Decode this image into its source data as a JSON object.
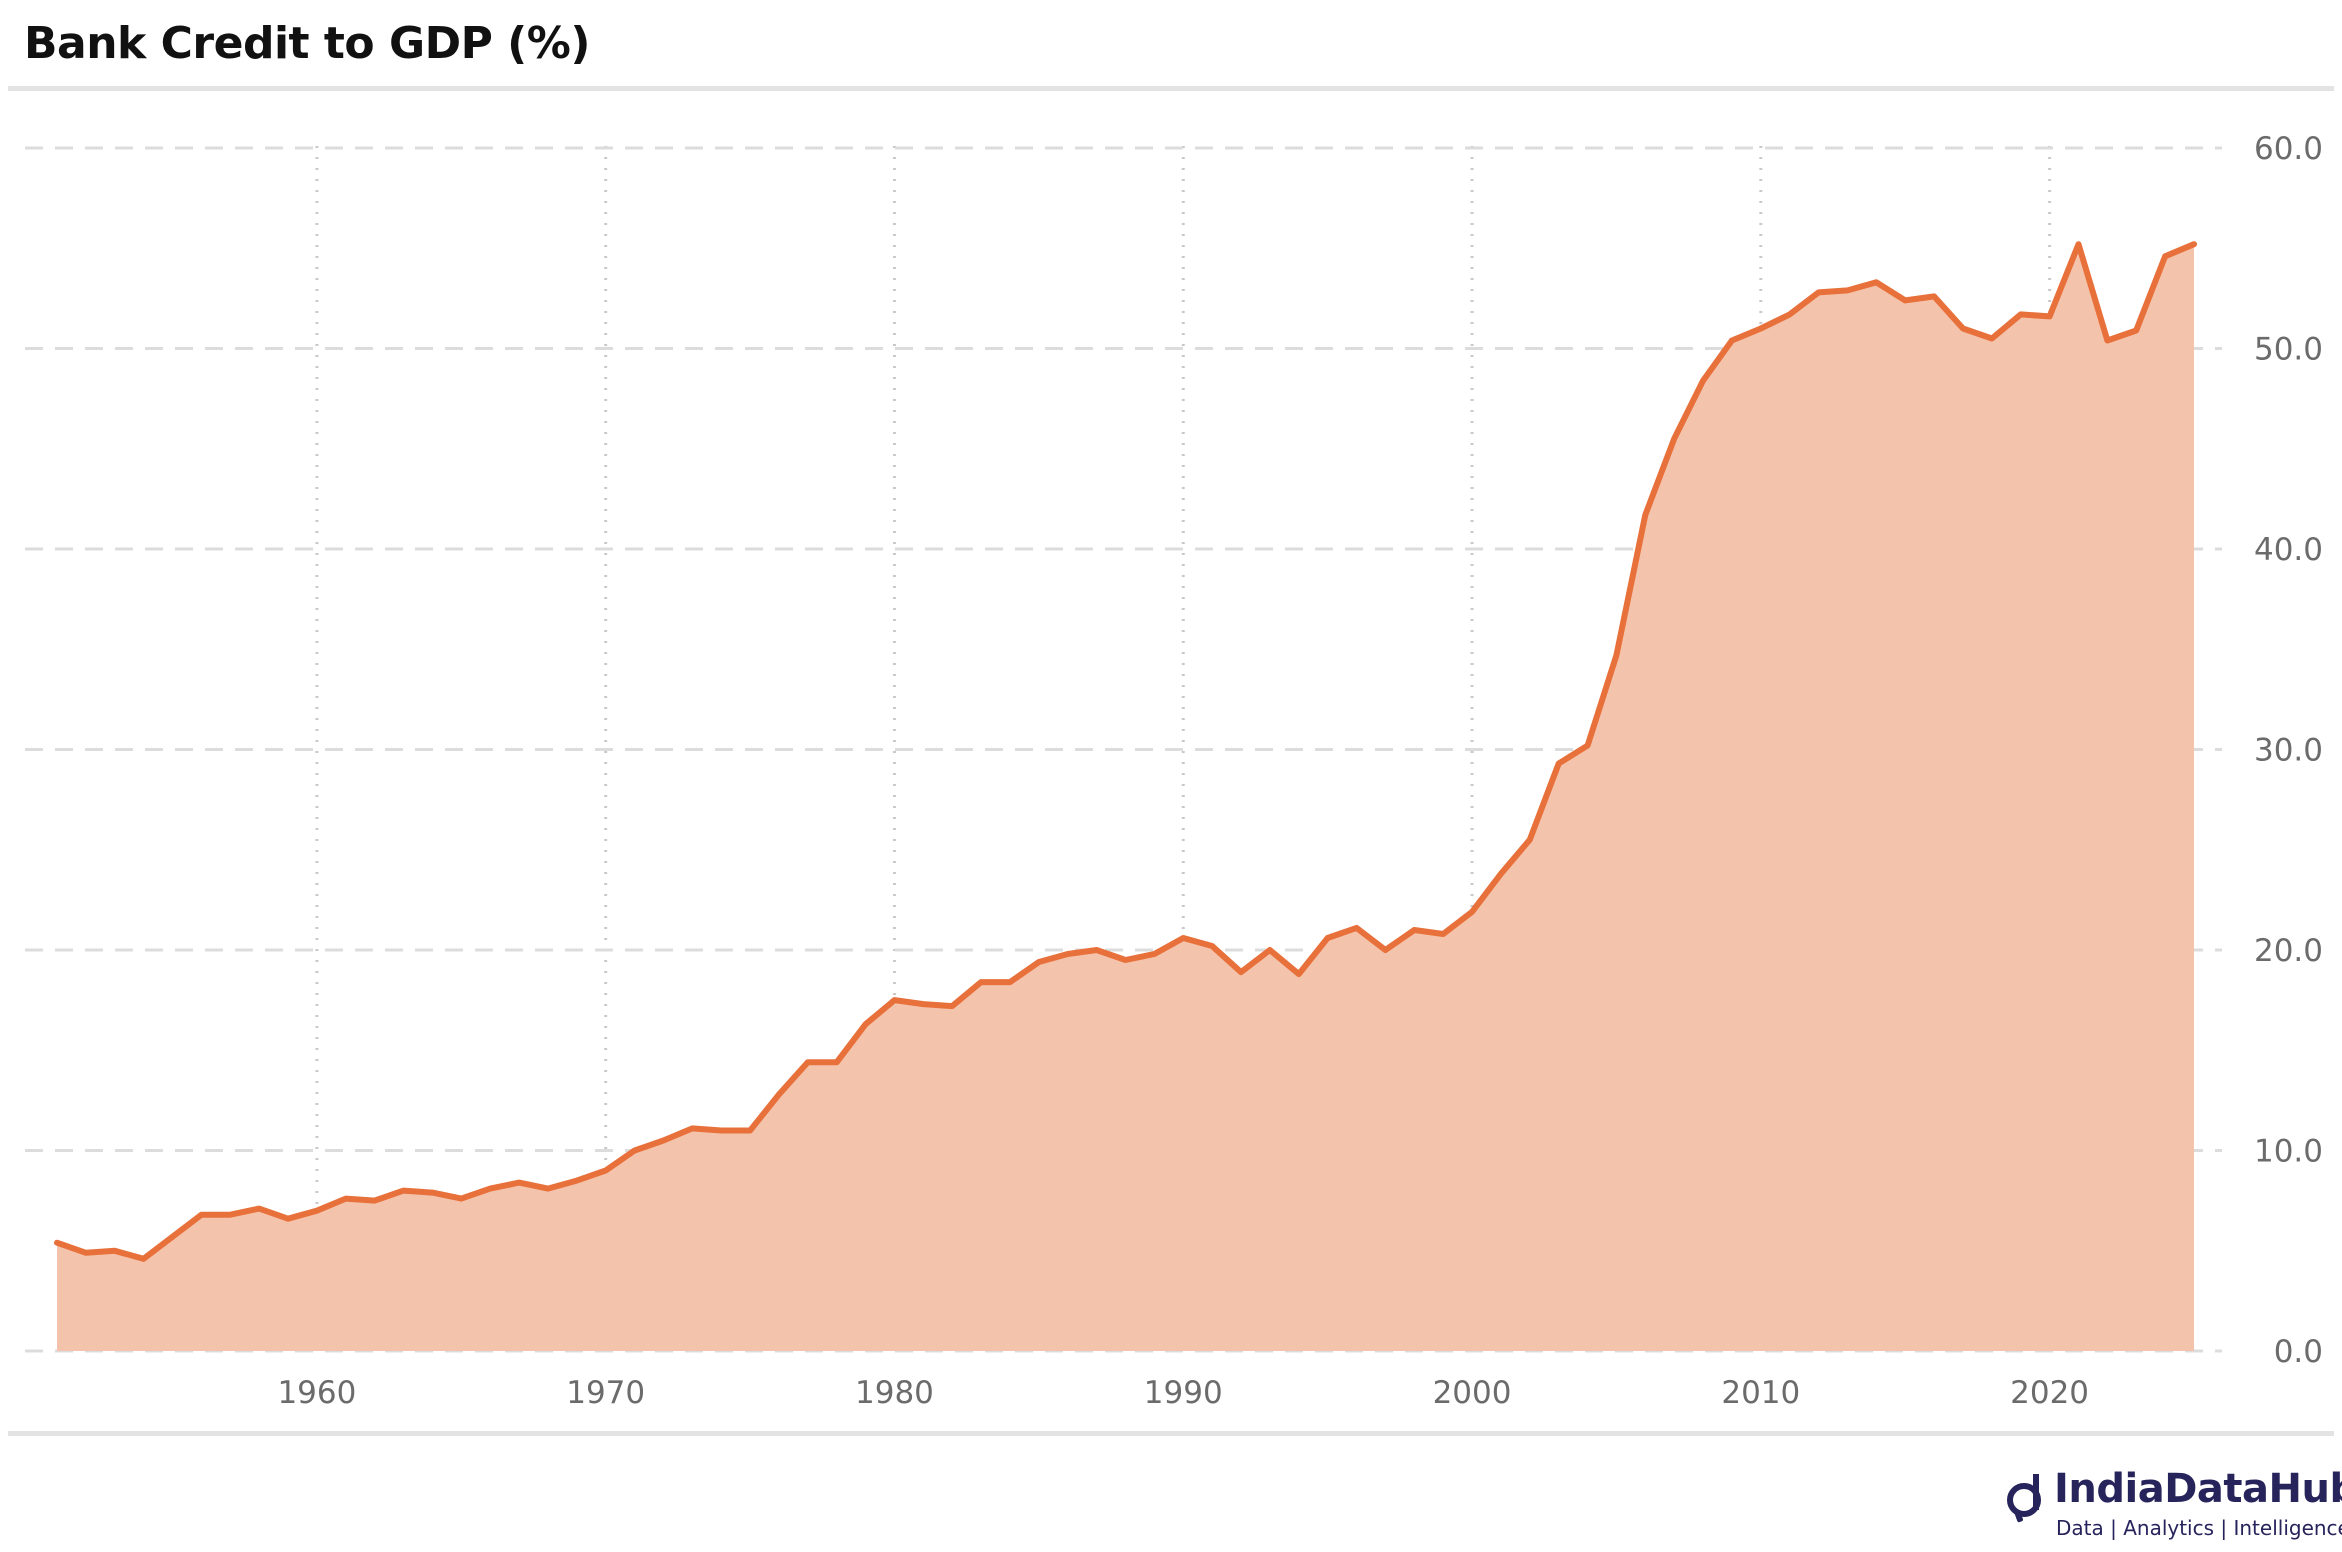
{
  "title": "Bank Credit to GDP (%)",
  "brand": {
    "name": "IndiaDataHub",
    "tagline": "Data | Analytics | Intelligence",
    "logo_icon": "d-magnifier-logo-icon",
    "color": "#27245c"
  },
  "colors": {
    "line": "#e8703a",
    "area": "#f4c3ac",
    "grid": "#d9d9d9",
    "tick_text": "#6b6b6b"
  },
  "chart_data": {
    "type": "area",
    "title": "Bank Credit to GDP (%)",
    "xlabel": "",
    "ylabel": "",
    "xlim": [
      1951,
      2025
    ],
    "ylim": [
      0,
      60
    ],
    "x_ticks": [
      1960,
      1970,
      1980,
      1990,
      2000,
      2010,
      2020
    ],
    "y_ticks": [
      0,
      10,
      20,
      30,
      40,
      50,
      60
    ],
    "y_tick_labels": [
      "0.0",
      "10.0",
      "20.0",
      "30.0",
      "40.0",
      "50.0",
      "60.0"
    ],
    "y_axis_position": "right",
    "grid": {
      "horizontal": "dashed",
      "vertical": "dotted"
    },
    "legend": "none",
    "series": [
      {
        "x": [
          1951,
          1952,
          1953,
          1954,
          1955,
          1956,
          1957,
          1958,
          1959,
          1960,
          1961,
          1962,
          1963,
          1964,
          1965,
          1966,
          1967,
          1968,
          1969,
          1970,
          1971,
          1972,
          1973,
          1974,
          1975,
          1976,
          1977,
          1978,
          1979,
          1980,
          1981,
          1982,
          1983,
          1984,
          1985,
          1986,
          1987,
          1988,
          1989,
          1990,
          1991,
          1992,
          1993,
          1994,
          1995,
          1996,
          1997,
          1998,
          1999,
          2000,
          2001,
          2002,
          2003,
          2004,
          2005,
          2006,
          2007,
          2008,
          2009,
          2010,
          2011,
          2012,
          2013,
          2014,
          2015,
          2016,
          2017,
          2018,
          2019,
          2020,
          2021,
          2022,
          2023,
          2024,
          2025
        ],
        "values": [
          5.4,
          4.9,
          5.0,
          4.6,
          5.7,
          6.8,
          6.8,
          7.1,
          6.6,
          7.0,
          7.6,
          7.5,
          8.0,
          7.9,
          7.6,
          8.1,
          8.4,
          8.1,
          8.5,
          9.0,
          10.0,
          10.5,
          11.1,
          11.0,
          11.0,
          12.8,
          14.4,
          14.4,
          16.3,
          17.5,
          17.3,
          17.2,
          18.4,
          18.4,
          19.4,
          19.8,
          20.0,
          19.5,
          19.8,
          20.6,
          20.2,
          18.9,
          20.0,
          18.8,
          20.6,
          21.1,
          20.0,
          21.0,
          20.8,
          21.9,
          23.8,
          25.5,
          29.3,
          30.2,
          34.7,
          41.7,
          45.5,
          48.4,
          50.4,
          51.0,
          51.7,
          52.8,
          52.9,
          53.3,
          52.4,
          52.6,
          51.0,
          50.5,
          51.7,
          51.6,
          55.2,
          50.4,
          50.9,
          54.6,
          55.2
        ]
      }
    ]
  }
}
